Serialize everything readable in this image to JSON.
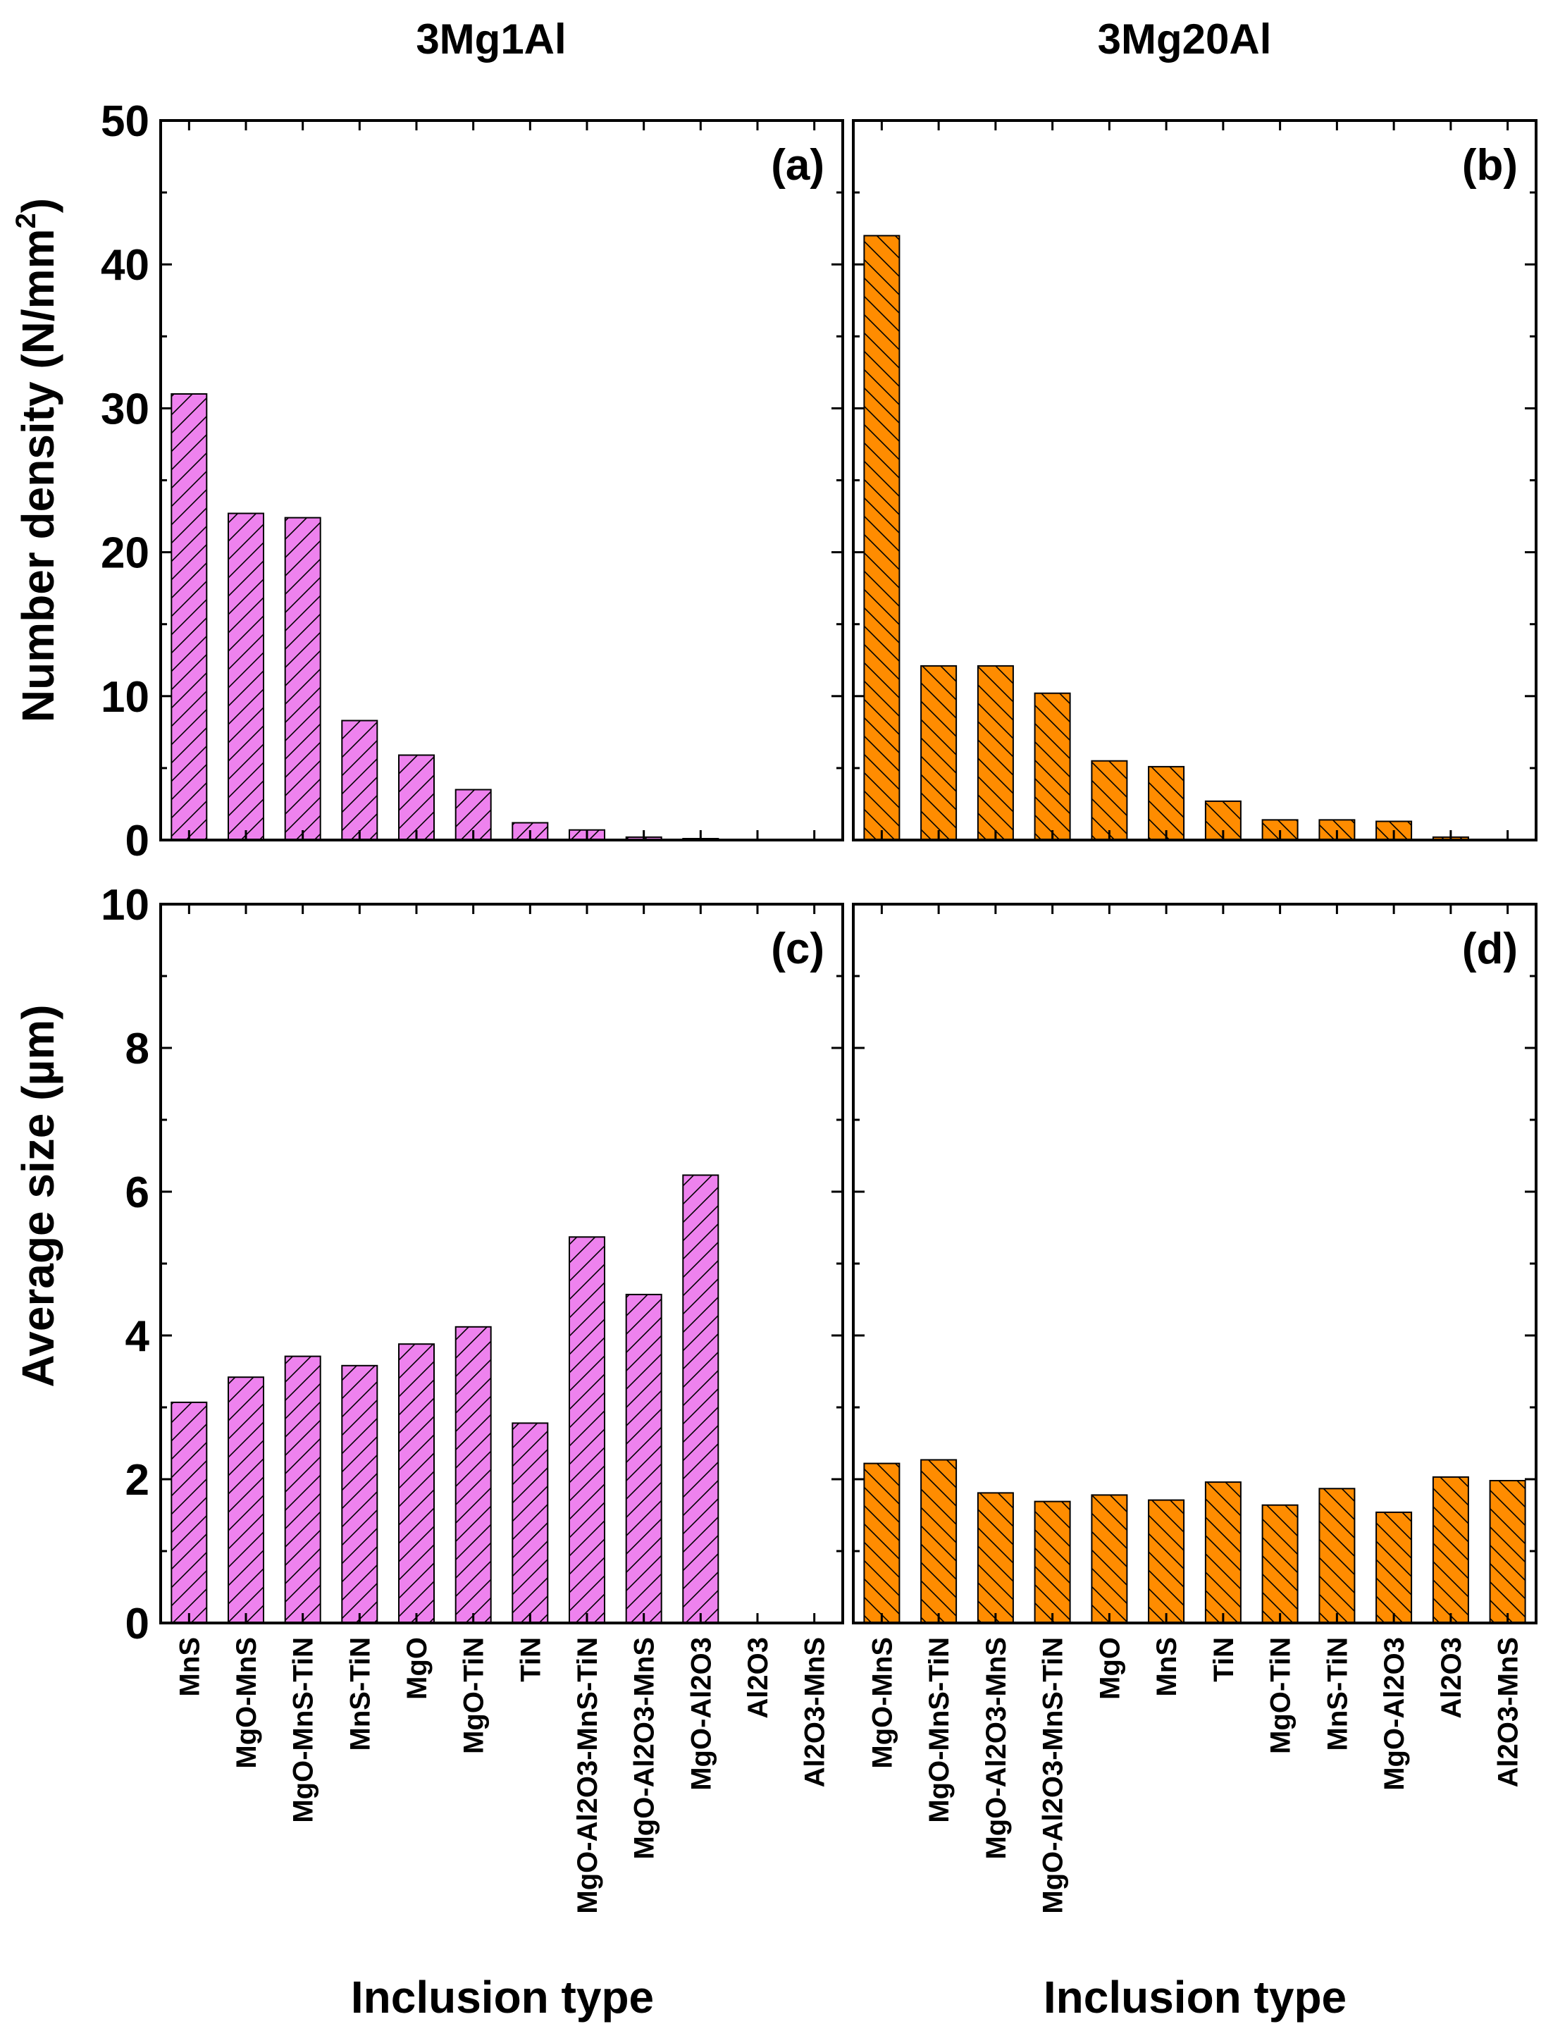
{
  "column_titles": [
    "3Mg1Al",
    "3Mg20Al"
  ],
  "axis_labels": {
    "density_y_main": "Number density (N/mm",
    "density_y_sup": "2",
    "density_y_close": ")",
    "size_y": "Average size (µm)",
    "x": "Inclusion type"
  },
  "colors": {
    "left_fill": "#ee82ee",
    "right_fill": "#ff8c00",
    "axis": "#000000"
  },
  "chart_data": [
    {
      "type": "bar",
      "panel_label": "(a)",
      "column": 0,
      "row": 0,
      "categories": [
        "MnS",
        "MgO-MnS",
        "MgO-MnS-TiN",
        "MnS-TiN",
        "MgO",
        "MgO-TiN",
        "TiN",
        "MgO-Al2O3-MnS-TiN",
        "MgO-Al2O3-MnS",
        "MgO-Al2O3",
        "Al2O3",
        "Al2O3-MnS"
      ],
      "values": [
        31.0,
        22.7,
        22.4,
        8.3,
        5.9,
        3.5,
        1.2,
        0.7,
        0.2,
        0.1,
        0,
        0
      ],
      "ylim": [
        0,
        50
      ],
      "yticks": [
        0,
        10,
        20,
        30,
        40,
        50
      ],
      "ylabel": "Number density (N/mm2)",
      "xlabel": "",
      "hatch": "forward"
    },
    {
      "type": "bar",
      "panel_label": "(b)",
      "column": 1,
      "row": 0,
      "categories": [
        "MgO-MnS",
        "MgO-MnS-TiN",
        "MgO-Al2O3-MnS",
        "MgO-Al2O3-MnS-TiN",
        "MgO",
        "MnS",
        "TiN",
        "MgO-TiN",
        "MnS-TiN",
        "MgO-Al2O3",
        "Al2O3",
        "Al2O3-MnS"
      ],
      "values": [
        42.0,
        12.1,
        12.1,
        10.2,
        5.5,
        5.1,
        2.7,
        1.4,
        1.4,
        1.3,
        0.2,
        0
      ],
      "ylim": [
        0,
        50
      ],
      "yticks": [
        0,
        10,
        20,
        30,
        40,
        50
      ],
      "ylabel": "",
      "xlabel": "",
      "hatch": "back"
    },
    {
      "type": "bar",
      "panel_label": "(c)",
      "column": 0,
      "row": 1,
      "categories": [
        "MnS",
        "MgO-MnS",
        "MgO-MnS-TiN",
        "MnS-TiN",
        "MgO",
        "MgO-TiN",
        "TiN",
        "MgO-Al2O3-MnS-TiN",
        "MgO-Al2O3-MnS",
        "MgO-Al2O3",
        "Al2O3",
        "Al2O3-MnS"
      ],
      "values": [
        3.07,
        3.42,
        3.71,
        3.58,
        3.88,
        4.12,
        2.78,
        5.37,
        4.57,
        6.23,
        0,
        0
      ],
      "ylim": [
        0,
        10
      ],
      "yticks": [
        0,
        2,
        4,
        6,
        8,
        10
      ],
      "ylabel": "Average size (µm)",
      "xlabel": "Inclusion type",
      "hatch": "forward"
    },
    {
      "type": "bar",
      "panel_label": "(d)",
      "column": 1,
      "row": 1,
      "categories": [
        "MgO-MnS",
        "MgO-MnS-TiN",
        "MgO-Al2O3-MnS",
        "MgO-Al2O3-MnS-TiN",
        "MgO",
        "MnS",
        "TiN",
        "MgO-TiN",
        "MnS-TiN",
        "MgO-Al2O3",
        "Al2O3",
        "Al2O3-MnS"
      ],
      "values": [
        2.22,
        2.27,
        1.81,
        1.69,
        1.78,
        1.71,
        1.96,
        1.64,
        1.87,
        1.54,
        2.03,
        1.98
      ],
      "ylim": [
        0,
        10
      ],
      "yticks": [
        0,
        2,
        4,
        6,
        8,
        10
      ],
      "ylabel": "",
      "xlabel": "Inclusion type",
      "hatch": "back"
    }
  ]
}
